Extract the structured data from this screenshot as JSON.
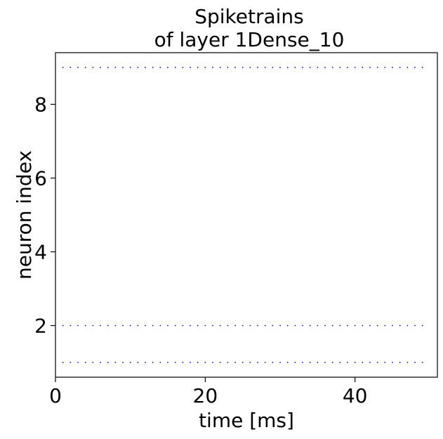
{
  "chart_data": {
    "type": "scatter",
    "title_line1": "Spiketrains",
    "title_line2": "of layer 1Dense_10",
    "xlabel": "time [ms]",
    "ylabel": "neuron index",
    "xlim": [
      0,
      51
    ],
    "ylim": [
      0.6,
      9.4
    ],
    "xticks": [
      0,
      20,
      40
    ],
    "yticks": [
      2,
      4,
      6,
      8
    ],
    "grid": false,
    "marker_color": "#0000ff",
    "series": [
      {
        "y": 1,
        "x": [
          1,
          2,
          3,
          4,
          5,
          6,
          7,
          8,
          9,
          10,
          11,
          12,
          13,
          14,
          15,
          16,
          17,
          18,
          19,
          20,
          21,
          22,
          23,
          24,
          25,
          26,
          27,
          28,
          29,
          30,
          31,
          32,
          33,
          34,
          35,
          36,
          37,
          38,
          39,
          40,
          41,
          42,
          43,
          44,
          45,
          46,
          47,
          48,
          49
        ]
      },
      {
        "y": 2,
        "x": [
          1,
          2,
          3,
          4,
          5,
          6,
          7,
          8,
          9,
          10,
          11,
          12,
          13,
          14,
          15,
          16,
          17,
          18,
          19,
          20,
          21,
          22,
          23,
          24,
          25,
          26,
          27,
          28,
          29,
          30,
          31,
          32,
          33,
          34,
          35,
          36,
          37,
          38,
          39,
          40,
          41,
          42,
          43,
          44,
          45,
          46,
          47,
          48,
          49
        ]
      },
      {
        "y": 9,
        "x": [
          1,
          2,
          3,
          4,
          5,
          6,
          7,
          8,
          9,
          10,
          11,
          12,
          13,
          14,
          15,
          16,
          17,
          18,
          19,
          20,
          21,
          22,
          23,
          24,
          25,
          26,
          27,
          28,
          29,
          30,
          31,
          32,
          33,
          34,
          35,
          36,
          37,
          38,
          39,
          40,
          41,
          42,
          43,
          44,
          45,
          46,
          47,
          48,
          49
        ]
      }
    ]
  }
}
